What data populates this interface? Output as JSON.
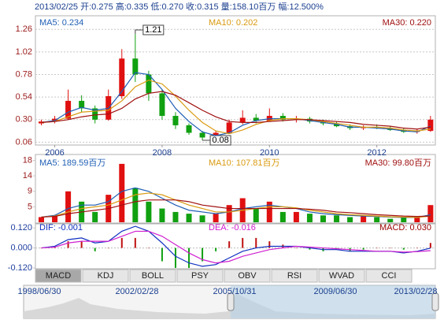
{
  "header": "2013/02/25 开:0.275 高:0.335 低:0.270 收:0.315 量:158.10百万 幅:12.500%",
  "chart_data": [
    {
      "type": "candlestick",
      "up_color": "#e01010",
      "down_color": "#10a010",
      "grid": true,
      "x": [
        2005.75,
        2006,
        2006.25,
        2006.5,
        2006.75,
        2007,
        2007.25,
        2007.5,
        2007.75,
        2008,
        2008.25,
        2008.5,
        2008.75,
        2009,
        2009.25,
        2009.5,
        2009.75,
        2010,
        2010.25,
        2010.5,
        2010.75,
        2011,
        2011.25,
        2011.5,
        2011.75,
        2012,
        2012.25,
        2012.5,
        2012.75,
        2013
      ],
      "open": [
        0.26,
        0.28,
        0.31,
        0.5,
        0.42,
        0.3,
        0.55,
        0.95,
        0.78,
        0.58,
        0.34,
        0.24,
        0.16,
        0.11,
        0.16,
        0.27,
        0.32,
        0.29,
        0.34,
        0.3,
        0.31,
        0.28,
        0.26,
        0.23,
        0.21,
        0.22,
        0.21,
        0.19,
        0.17,
        0.18
      ],
      "high": [
        0.3,
        0.34,
        0.62,
        0.56,
        0.45,
        0.62,
        1.05,
        1.21,
        0.82,
        0.62,
        0.38,
        0.26,
        0.18,
        0.18,
        0.3,
        0.4,
        0.36,
        0.42,
        0.37,
        0.34,
        0.33,
        0.3,
        0.28,
        0.25,
        0.24,
        0.25,
        0.23,
        0.21,
        0.2,
        0.34
      ],
      "low": [
        0.24,
        0.26,
        0.3,
        0.38,
        0.26,
        0.29,
        0.52,
        0.7,
        0.5,
        0.3,
        0.2,
        0.14,
        0.08,
        0.1,
        0.15,
        0.25,
        0.26,
        0.28,
        0.28,
        0.27,
        0.26,
        0.24,
        0.22,
        0.19,
        0.19,
        0.2,
        0.18,
        0.16,
        0.15,
        0.17
      ],
      "close": [
        0.28,
        0.31,
        0.5,
        0.42,
        0.3,
        0.55,
        0.95,
        0.78,
        0.58,
        0.34,
        0.24,
        0.16,
        0.11,
        0.16,
        0.27,
        0.32,
        0.29,
        0.34,
        0.3,
        0.31,
        0.28,
        0.26,
        0.23,
        0.21,
        0.22,
        0.21,
        0.19,
        0.17,
        0.18,
        0.3
      ],
      "series": [
        {
          "name": "MA5: 0.234",
          "color": "#1f5fb5",
          "values": [
            0.27,
            0.29,
            0.38,
            0.43,
            0.4,
            0.42,
            0.6,
            0.8,
            0.78,
            0.62,
            0.42,
            0.28,
            0.17,
            0.13,
            0.16,
            0.24,
            0.29,
            0.31,
            0.31,
            0.31,
            0.29,
            0.27,
            0.25,
            0.22,
            0.22,
            0.21,
            0.2,
            0.18,
            0.17,
            0.23
          ]
        },
        {
          "name": "MA10: 0.202",
          "color": "#d99a10",
          "values": [
            0.27,
            0.28,
            0.33,
            0.38,
            0.39,
            0.4,
            0.5,
            0.65,
            0.72,
            0.68,
            0.55,
            0.4,
            0.27,
            0.18,
            0.15,
            0.19,
            0.25,
            0.29,
            0.31,
            0.31,
            0.3,
            0.28,
            0.26,
            0.24,
            0.22,
            0.22,
            0.21,
            0.19,
            0.18,
            0.2
          ]
        },
        {
          "name": "MA30: 0.220",
          "color": "#a01010",
          "values": [
            0.27,
            0.28,
            0.3,
            0.33,
            0.35,
            0.36,
            0.42,
            0.52,
            0.58,
            0.6,
            0.56,
            0.48,
            0.4,
            0.33,
            0.28,
            0.27,
            0.27,
            0.28,
            0.29,
            0.3,
            0.3,
            0.29,
            0.28,
            0.27,
            0.25,
            0.24,
            0.23,
            0.21,
            0.2,
            0.22
          ]
        }
      ],
      "ylim": [
        0.03,
        1.38
      ],
      "yticks": [
        0.06,
        {
          "value": 0.3,
          "label": "0.30"
        },
        0.54,
        0.78,
        1.02,
        1.26
      ],
      "xlim": [
        2005.64,
        2013.09
      ],
      "xticks": [
        2006,
        2008,
        2010,
        2012
      ],
      "annotations": [
        "1.21",
        "0.08"
      ]
    },
    {
      "type": "bar",
      "values": [
        1.5,
        2,
        9,
        6,
        3,
        8,
        17,
        10,
        6,
        4,
        3,
        2.5,
        2,
        2.5,
        5,
        7,
        4,
        6,
        3,
        3,
        2.5,
        2,
        2,
        1.5,
        2,
        1.5,
        1,
        1.5,
        1.5,
        5
      ],
      "series": [
        {
          "name": "MA5: 189.59百万",
          "color": "#1f5fb5",
          "values": [
            1.5,
            2,
            4,
            5,
            5,
            6,
            9,
            10,
            9,
            7,
            5,
            3.5,
            3,
            2.5,
            3,
            4,
            4.5,
            5,
            4.5,
            4,
            3,
            2.5,
            2.2,
            2,
            1.8,
            1.7,
            1.5,
            1.4,
            1.4,
            2.2
          ]
        },
        {
          "name": "MA10: 107.81百万",
          "color": "#d99a10",
          "values": [
            1.5,
            1.8,
            3,
            4,
            4.5,
            5,
            6.5,
            8,
            8.5,
            8,
            6.5,
            5,
            4,
            3,
            3,
            3.5,
            4,
            4.5,
            4.5,
            4.2,
            3.5,
            3,
            2.5,
            2.2,
            2,
            1.8,
            1.6,
            1.5,
            1.4,
            1.8
          ]
        },
        {
          "name": "MA30: 99.80百万",
          "color": "#a01010",
          "values": [
            1.5,
            1.7,
            2.5,
            3,
            3.5,
            4,
            5,
            6,
            6.5,
            6.5,
            6.5,
            6,
            5,
            4.5,
            4,
            4,
            4,
            4,
            4,
            4,
            3.8,
            3.5,
            3,
            2.8,
            2.5,
            2.2,
            2,
            1.8,
            1.7,
            1.8
          ]
        }
      ],
      "ylim": [
        0,
        19.5
      ],
      "yticks": [
        {
          "value": 4.5,
          "label": "5"
        },
        9,
        {
          "value": 13.5,
          "label": "14"
        },
        18
      ]
    },
    {
      "type": "macd",
      "up_color": "#c01010",
      "down_color": "#10a010",
      "macd_name": "MACD: 0.030",
      "values": [
        0,
        0.01,
        0.04,
        0.04,
        -0.02,
        0,
        0.06,
        0.06,
        0,
        -0.08,
        -0.12,
        -0.12,
        -0.08,
        -0.02,
        0.04,
        0.06,
        0.06,
        0.04,
        0.02,
        0,
        -0.01,
        -0.02,
        -0.01,
        -0.02,
        -0.01,
        0,
        0,
        -0.01,
        0,
        0.03
      ],
      "series": [
        {
          "name": "DIF: -0.001",
          "color": "#1030c0",
          "values": [
            0,
            0.01,
            0.05,
            0.06,
            0.03,
            0.04,
            0.1,
            0.13,
            0.1,
            0.03,
            -0.05,
            -0.09,
            -0.11,
            -0.1,
            -0.06,
            -0.02,
            0,
            0.01,
            0.01,
            0.01,
            0,
            -0.01,
            -0.01,
            -0.02,
            -0.02,
            -0.02,
            -0.02,
            -0.03,
            -0.02,
            -0.001
          ]
        },
        {
          "name": "DEA: -0.016",
          "color": "#d020d0",
          "values": [
            0,
            0.005,
            0.03,
            0.04,
            0.04,
            0.04,
            0.07,
            0.1,
            0.1,
            0.07,
            0.02,
            -0.03,
            -0.07,
            -0.09,
            -0.08,
            -0.05,
            -0.03,
            -0.01,
            0,
            0.01,
            0.005,
            0,
            -0.005,
            -0.01,
            -0.015,
            -0.02,
            -0.02,
            -0.025,
            -0.022,
            -0.016
          ]
        }
      ],
      "ylim": [
        -0.125,
        0.14
      ],
      "yticks": [
        {
          "value": 0.12,
          "label": "0.120"
        },
        {
          "value": 0,
          "label": "0.000"
        },
        {
          "value": -0.12,
          "label": "-0.120"
        }
      ]
    }
  ],
  "tabs": [
    "MACD",
    "KDJ",
    "BOLL",
    "PSY",
    "OBV",
    "RSI",
    "WVAD",
    "CCI"
  ],
  "navigator": [
    "1998/06/30",
    "2002/02/28",
    "2005/10/31",
    "2009/06/30",
    "2013/02/28"
  ]
}
